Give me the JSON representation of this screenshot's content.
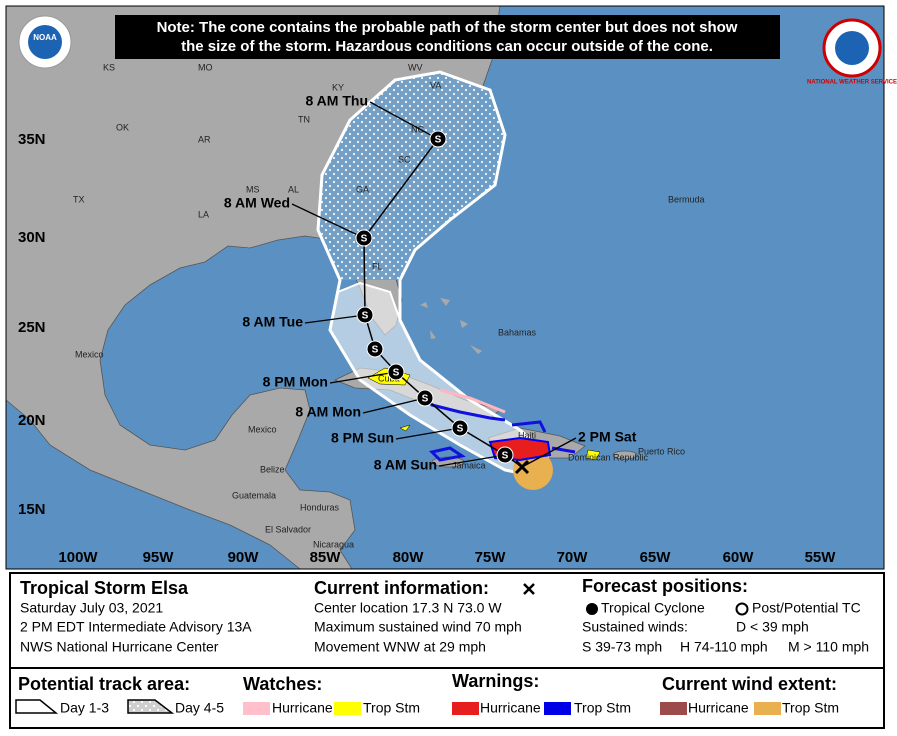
{
  "note": [
    "Note: The cone contains the probable path of the storm center but does not show",
    "the size of the storm. Hazardous conditions can occur outside of the cone."
  ],
  "logos": {
    "noaa": "NOAA",
    "nws": "NATIONAL WEATHER SERVICE"
  },
  "map": {
    "latitudes": [
      "35N",
      "30N",
      "25N",
      "20N",
      "15N"
    ],
    "longitudes": [
      "100W",
      "95W",
      "90W",
      "85W",
      "80W",
      "75W",
      "70W",
      "65W",
      "60W",
      "55W"
    ],
    "places": [
      "KS",
      "MO",
      "KY",
      "WV",
      "VA",
      "OK",
      "AR",
      "TN",
      "NC",
      "SC",
      "MS",
      "AL",
      "GA",
      "TX",
      "LA",
      "FL",
      "Bermuda",
      "Bahamas",
      "Mexico",
      "Cuba",
      "Mexico",
      "Belize",
      "Guatemala",
      "Honduras",
      "El Salvador",
      "Nicaragua",
      "Jamaica",
      "Haiti",
      "Dominican Republic",
      "Puerto Rico"
    ],
    "forecast_times": [
      "2 PM Sat",
      "8 AM Sun",
      "8 PM Sun",
      "8 AM Mon",
      "8 PM Mon",
      "8 AM Tue",
      "8 AM Wed",
      "8 AM Thu"
    ],
    "storm_symbol": "S"
  },
  "storm": {
    "name": "Tropical Storm Elsa",
    "date": "Saturday July 03, 2021",
    "advisory": "2 PM EDT Intermediate Advisory 13A",
    "center": "NWS National Hurricane Center"
  },
  "current": {
    "title": "Current information:",
    "lines": [
      "Center location 17.3 N 73.0 W",
      "Maximum sustained wind 70 mph",
      "Movement WNW at 29 mph"
    ]
  },
  "forecast": {
    "title": "Forecast positions:",
    "tropical": "Tropical Cyclone",
    "post": "Post/Potential TC",
    "sustained": "Sustained winds:",
    "d": "D < 39 mph",
    "s": "S 39-73 mph",
    "h": "H 74-110 mph",
    "m": "M > 110 mph"
  },
  "legend": {
    "track": {
      "title": "Potential track area:",
      "day13": "Day 1-3",
      "day45": "Day 4-5"
    },
    "watches": {
      "title": "Watches:",
      "hurricane": "Hurricane",
      "trop": "Trop Stm"
    },
    "warnings": {
      "title": "Warnings:",
      "hurricane": "Hurricane",
      "trop": "Trop Stm"
    },
    "wind": {
      "title": "Current wind extent:",
      "hurricane": "Hurricane",
      "trop": "Trop Stm"
    }
  }
}
